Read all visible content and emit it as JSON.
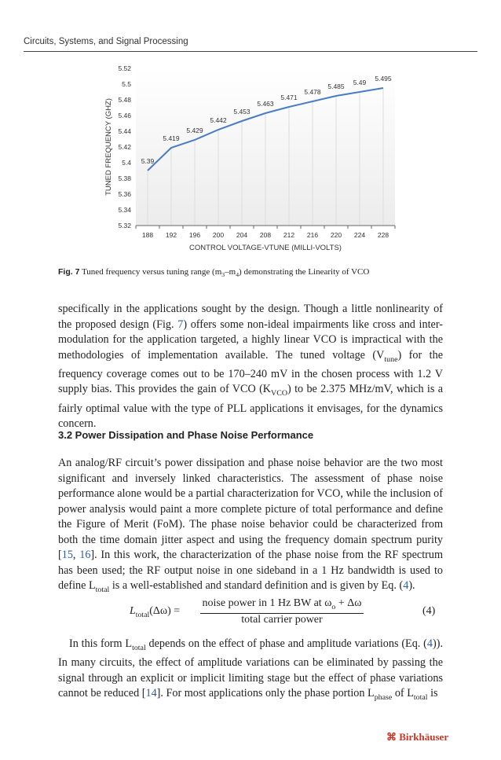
{
  "header": {
    "running_title": "Circuits, Systems, and Signal Processing"
  },
  "chart_data": {
    "type": "line",
    "categories": [
      "188",
      "192",
      "196",
      "200",
      "204",
      "208",
      "212",
      "216",
      "220",
      "224",
      "228"
    ],
    "values": [
      5.39,
      5.419,
      5.429,
      5.442,
      5.453,
      5.463,
      5.471,
      5.478,
      5.485,
      5.49,
      5.495
    ],
    "data_labels": [
      "5.39",
      "5.419",
      "5.429",
      "5.442",
      "5.453",
      "5.463",
      "5.471",
      "5.478",
      "5.485",
      "5.49",
      "5.495"
    ],
    "yticks": [
      "5.32",
      "5.34",
      "5.36",
      "5.38",
      "5.4",
      "5.42",
      "5.44",
      "5.46",
      "5.48",
      "5.5",
      "5.52"
    ],
    "ylim": [
      5.32,
      5.52
    ],
    "xlabel": "CONTROL VOLTAGE-VTUNE (MILLI-VOLTS)",
    "ylabel": "TUNED FREQUENCY  (GHZ)",
    "color": "#4a7cc4"
  },
  "caption": {
    "label": "Fig. 7",
    "text": " Tuned frequency versus tuning range (m",
    "s1": "3",
    "t2": "–m",
    "s2": "4",
    "t3": ") demonstrating the Linearity of VCO"
  },
  "para1": {
    "a": "specifically in the applications sought by the design. Though a little nonlinearity of the proposed design (Fig. ",
    "ref": "7",
    "b": ") offers some non-ideal impairments like cross and inter-modulation for the application targeted, a highly linear VCO is impractical with the methodologies of implementation available. The tuned voltage (V",
    "sub1": "tune",
    "c": ") for the frequency coverage comes out to be 170–240 mV in the chosen process with 1.2 V supply bias. This provides the gain of VCO (K",
    "sub2": "VCO",
    "d": ") to be 2.375 MHz/mV, which is a fairly optimal value with the type of PLL applications it envisages, for the dynamics concern."
  },
  "heading": "3.2  Power Dissipation and Phase Noise Performance",
  "para2": {
    "a": "An analog/RF circuit’s power dissipation and phase noise behavior are the two most significant and inversely linked characteristics. The assessment of phase noise performance alone would be a partial characterization for VCO, while the inclusion of power analysis would paint a more complete picture of total performance and define the Figure of Merit (FoM). The phase noise behavior could be characterized from both the time domain jitter aspect and using the frequency domain spectrum purity [",
    "r1": "15",
    "sep": ", ",
    "r2": "16",
    "b": "]. In this work, the characterization of the phase noise from the RF spectrum has been used; the RF output noise in one sideband in a 1 Hz bandwidth is used to define L",
    "sub": "total",
    "c": " is a well-established and standard definition and is given by Eq. (",
    "r3": "4",
    "d": ")."
  },
  "equation": {
    "lhs": "L",
    "lhs_sub": "total",
    "lhs_arg": "(Δω) =",
    "num": "noise power in 1 Hz BW at ω",
    "num_sub": "o",
    "num_end": " + Δω",
    "den": "total carrier power",
    "number": "(4)"
  },
  "para3": {
    "a": "In this form L",
    "sub1": "total",
    "b": " depends on the effect of phase and amplitude variations (Eq. (",
    "r1": "4",
    "c": ")). In many circuits, the effect of amplitude variations can be eliminated by passing the signal through an explicit or implicit limiting stage but the effect of phase variations cannot be reduced [",
    "r2": "14",
    "d": "]. For most applications only the phase portion L",
    "sub2": "phase",
    "e": " of L",
    "sub3": "total",
    "f": " is"
  },
  "publisher": "Birkhäuser"
}
